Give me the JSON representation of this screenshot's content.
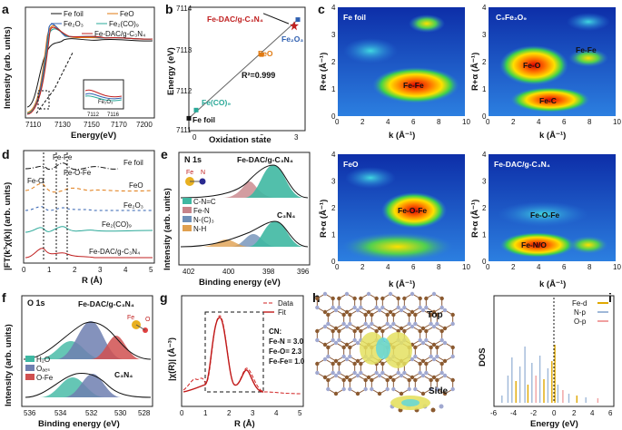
{
  "panels": {
    "a": {
      "label": "a",
      "ylabel": "Intensity (arb. units)",
      "xlabel": "Energy(eV)",
      "xticks": [
        "7110",
        "7130",
        "7150",
        "7170",
        "7200"
      ],
      "legend": [
        "Fe foil",
        "FeO",
        "Fe₂O₃",
        "Fe₂(CO)₉",
        "Fe-DAC/g-C₃N₄"
      ],
      "inset_ticks": [
        "7112",
        "7116"
      ],
      "inset_label": "Fe₂O₃"
    },
    "b": {
      "label": "b",
      "ylabel": "Energy (eV)",
      "xlabel": "Oxidation state",
      "yticks": [
        "7111",
        "7112",
        "7113",
        "7114"
      ],
      "xticks": [
        "0",
        "1",
        "2",
        "3"
      ],
      "points": [
        "Fe foil",
        "Fe(CO)₉",
        "FeO",
        "Fe₂O₃",
        "Fe-DAC/g-C₃N₄"
      ],
      "r2": "R²=0.999"
    },
    "c": {
      "label": "c",
      "tiles": [
        {
          "title": "Fe foil",
          "labels": [
            "Fe-Fe"
          ]
        },
        {
          "title": "C₉Fe₂O₉",
          "labels": [
            "Fe-Fe",
            "Fe-O",
            "Fe-C"
          ]
        },
        {
          "title": "FeO",
          "labels": [
            "Fe-O-Fe"
          ]
        },
        {
          "title": "Fe-DAC/g-C₃N₄",
          "labels": [
            "Fe-O-Fe",
            "Fe-N/O"
          ]
        }
      ],
      "ylabel": "R+α (Å⁻¹)",
      "xlabel": "k (Å⁻¹)",
      "xticks": [
        "0",
        "2",
        "4",
        "6",
        "8",
        "10"
      ],
      "yticks": [
        "0",
        "1",
        "2",
        "3",
        "4"
      ]
    },
    "d": {
      "label": "d",
      "ylabel": "|FT(k³χ(k)| (arb. units)",
      "xlabel": "R (Å)",
      "xticks": [
        "0",
        "1",
        "2",
        "3",
        "4",
        "5"
      ],
      "annotations": [
        "Fe-Fe",
        "Fe-O",
        "Fe-O-Fe"
      ],
      "legend": [
        "Fe foil",
        "FeO",
        "Fe₂O₃",
        "Fe₂(CO)₉",
        "Fe-DAC/g-C₃N₄"
      ]
    },
    "e": {
      "label": "e",
      "title": "N 1s",
      "sample_top": "Fe-DAC/g-C₃N₄",
      "sample_bottom": "C₃N₄",
      "ylabel": "Intensity (arb. units)",
      "xlabel": "Binding energy (eV)",
      "xticks": [
        "402",
        "400",
        "398",
        "396"
      ],
      "legend": [
        "C-N=C",
        "Fe-N",
        "N-(C)₃",
        "N-H"
      ],
      "atoms": [
        "Fe",
        "N"
      ]
    },
    "f": {
      "label": "f",
      "title": "O 1s",
      "sample_top": "Fe-DAC/g-C₃N₄",
      "sample_bottom": "C₃N₄",
      "ylabel": "Intensity (arb. units)",
      "xlabel": "Binding energy (eV)",
      "xticks": [
        "536",
        "534",
        "532",
        "530",
        "528"
      ],
      "legend": [
        "H₂O",
        "Oₐₑₛ",
        "O-Fe"
      ],
      "atoms": [
        "Fe",
        "O"
      ]
    },
    "g": {
      "label": "g",
      "ylabel": "|χ(R)| (Å⁻³)",
      "xlabel": "R (Å)",
      "xticks": [
        "0",
        "1",
        "2",
        "3",
        "4",
        "5"
      ],
      "legend": [
        "Data",
        "Fit"
      ],
      "cn": [
        "CN:",
        "Fe-N = 3.0",
        "Fe-O= 2.3",
        "Fe-Fe= 1.0"
      ]
    },
    "h": {
      "label": "h",
      "top": "Top",
      "side": "Side"
    },
    "i": {
      "label": "i",
      "ylabel": "DOS",
      "xlabel": "Energy (eV)",
      "xticks": [
        "-6",
        "-4",
        "-2",
        "0",
        "2",
        "4",
        "6"
      ],
      "legend": [
        "Fe-d",
        "N-p",
        "O-p"
      ]
    }
  },
  "chart_data": [
    {
      "type": "line",
      "title": "b",
      "xlabel": "Oxidation state",
      "ylabel": "Energy (eV)",
      "x": [
        0,
        0.2,
        2,
        2.9,
        3
      ],
      "y": [
        7111.3,
        7111.5,
        7112.85,
        7113.55,
        7113.7
      ],
      "point_labels": [
        "Fe foil",
        "Fe(CO)₉",
        "FeO",
        "Fe-DAC/g-C₃N₄",
        "Fe₂O₃"
      ],
      "xlim": [
        0,
        3.2
      ],
      "ylim": [
        7111,
        7114
      ]
    },
    {
      "type": "bar",
      "title": "i",
      "xlabel": "Energy (eV)",
      "ylabel": "DOS",
      "xlim": [
        -6,
        6
      ],
      "series": [
        {
          "name": "Fe-d",
          "color": "#e0a800"
        },
        {
          "name": "N-p",
          "color": "#9fb8d8"
        },
        {
          "name": "O-p",
          "color": "#f0a0a0"
        }
      ]
    },
    {
      "type": "line",
      "title": "g",
      "xlabel": "R (Å)",
      "ylabel": "|χ(R)| (Å⁻³)",
      "xlim": [
        0,
        5
      ],
      "series": [
        {
          "name": "Data",
          "color": "#d02020",
          "style": "dashed"
        },
        {
          "name": "Fit",
          "color": "#c01818",
          "style": "solid"
        }
      ]
    }
  ]
}
